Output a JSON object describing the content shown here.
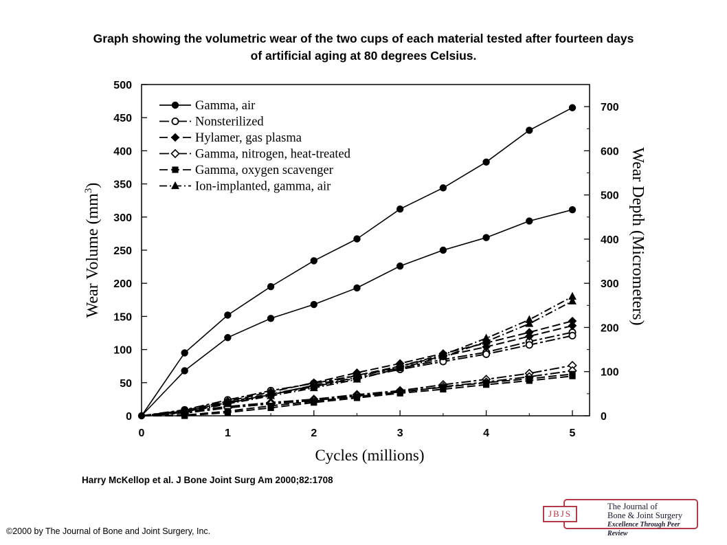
{
  "header": {
    "title_line1": "Graph showing the volumetric wear of the two cups of each material tested after fourteen days",
    "title_line2": "of artificial aging at 80 degrees Celsius."
  },
  "citation": "Harry McKellop et al. J Bone Joint Surg Am 2000;82:1708",
  "copyright": "©2000 by The Journal of Bone and Joint Surgery, Inc.",
  "logo": {
    "mark": "JBJS",
    "line1": "The Journal of",
    "line2": "Bone & Joint Surgery",
    "line3": "Excellence Through Peer Review"
  },
  "chart_data": {
    "type": "line",
    "title": "Graph showing the volumetric wear of the two cups of each material tested after fourteen days of artificial aging at 80 degrees Celsius.",
    "xlabel": "Cycles (millions)",
    "ylabel": "Wear Volume (mm3)",
    "y2label": "Wear Depth (Micrometers)",
    "xlim": [
      0,
      5
    ],
    "ylim": [
      0,
      500
    ],
    "y2lim": [
      0,
      750
    ],
    "xticks": [
      0,
      1,
      2,
      3,
      4,
      5
    ],
    "yticks": [
      0,
      50,
      100,
      150,
      200,
      250,
      300,
      350,
      400,
      450,
      500
    ],
    "y2ticks": [
      0,
      100,
      200,
      300,
      400,
      500,
      600,
      700
    ],
    "legend_position": "top-left",
    "grid": false,
    "x": [
      0,
      0.5,
      1,
      1.5,
      2,
      2.5,
      3,
      3.5,
      4,
      4.5,
      5
    ],
    "series": [
      {
        "name": "Gamma, air",
        "marker": "filled-circle",
        "dash": "solid",
        "cup": 1,
        "values": [
          0,
          95,
          152,
          195,
          234,
          267,
          312,
          344,
          383,
          431,
          465
        ]
      },
      {
        "name": "Gamma, air",
        "marker": "filled-circle",
        "dash": "solid",
        "cup": 2,
        "values": [
          0,
          68,
          118,
          147,
          168,
          193,
          226,
          250,
          269,
          294,
          311
        ]
      },
      {
        "name": "Nonsterilized",
        "marker": "open-circle",
        "dash": "long-short",
        "cup": 1,
        "values": [
          0,
          9,
          24,
          38,
          49,
          61,
          72,
          85,
          96,
          112,
          126
        ]
      },
      {
        "name": "Nonsterilized",
        "marker": "open-circle",
        "dash": "long-short",
        "cup": 2,
        "values": [
          0,
          7,
          20,
          32,
          44,
          57,
          70,
          82,
          93,
          107,
          121
        ]
      },
      {
        "name": "Hylamer, gas plasma",
        "marker": "filled-diamond",
        "dash": "long",
        "cup": 1,
        "values": [
          0,
          8,
          22,
          36,
          50,
          65,
          79,
          94,
          110,
          126,
          143
        ]
      },
      {
        "name": "Hylamer, gas plasma",
        "marker": "filled-diamond",
        "dash": "long",
        "cup": 2,
        "values": [
          0,
          6,
          19,
          32,
          46,
          61,
          75,
          90,
          104,
          120,
          136
        ]
      },
      {
        "name": "Gamma, nitrogen, heat-treated",
        "marker": "open-diamond",
        "dash": "long-short",
        "cup": 1,
        "values": [
          0,
          6,
          14,
          20,
          25,
          32,
          38,
          47,
          55,
          64,
          76
        ]
      },
      {
        "name": "Gamma, nitrogen, heat-treated",
        "marker": "open-diamond",
        "dash": "long-short",
        "cup": 2,
        "values": [
          0,
          4,
          12,
          18,
          23,
          30,
          36,
          44,
          51,
          59,
          68
        ]
      },
      {
        "name": "Gamma, oxygen scavenger",
        "marker": "filled-square",
        "dash": "long",
        "cup": 1,
        "values": [
          0,
          0,
          5,
          12,
          20,
          27,
          34,
          40,
          47,
          53,
          60
        ]
      },
      {
        "name": "Gamma, oxygen scavenger",
        "marker": "filled-square",
        "dash": "long",
        "cup": 2,
        "values": [
          0,
          1,
          7,
          15,
          22,
          29,
          36,
          43,
          50,
          56,
          63
        ]
      },
      {
        "name": "Ion-implanted, gamma, air",
        "marker": "filled-triangle",
        "dash": "dash-dot",
        "cup": 1,
        "values": [
          0,
          7,
          21,
          33,
          45,
          58,
          75,
          92,
          117,
          145,
          180
        ]
      },
      {
        "name": "Ion-implanted, gamma, air",
        "marker": "filled-triangle",
        "dash": "dash-dot",
        "cup": 2,
        "values": [
          0,
          5,
          18,
          30,
          42,
          55,
          72,
          89,
          112,
          139,
          173
        ]
      }
    ]
  }
}
